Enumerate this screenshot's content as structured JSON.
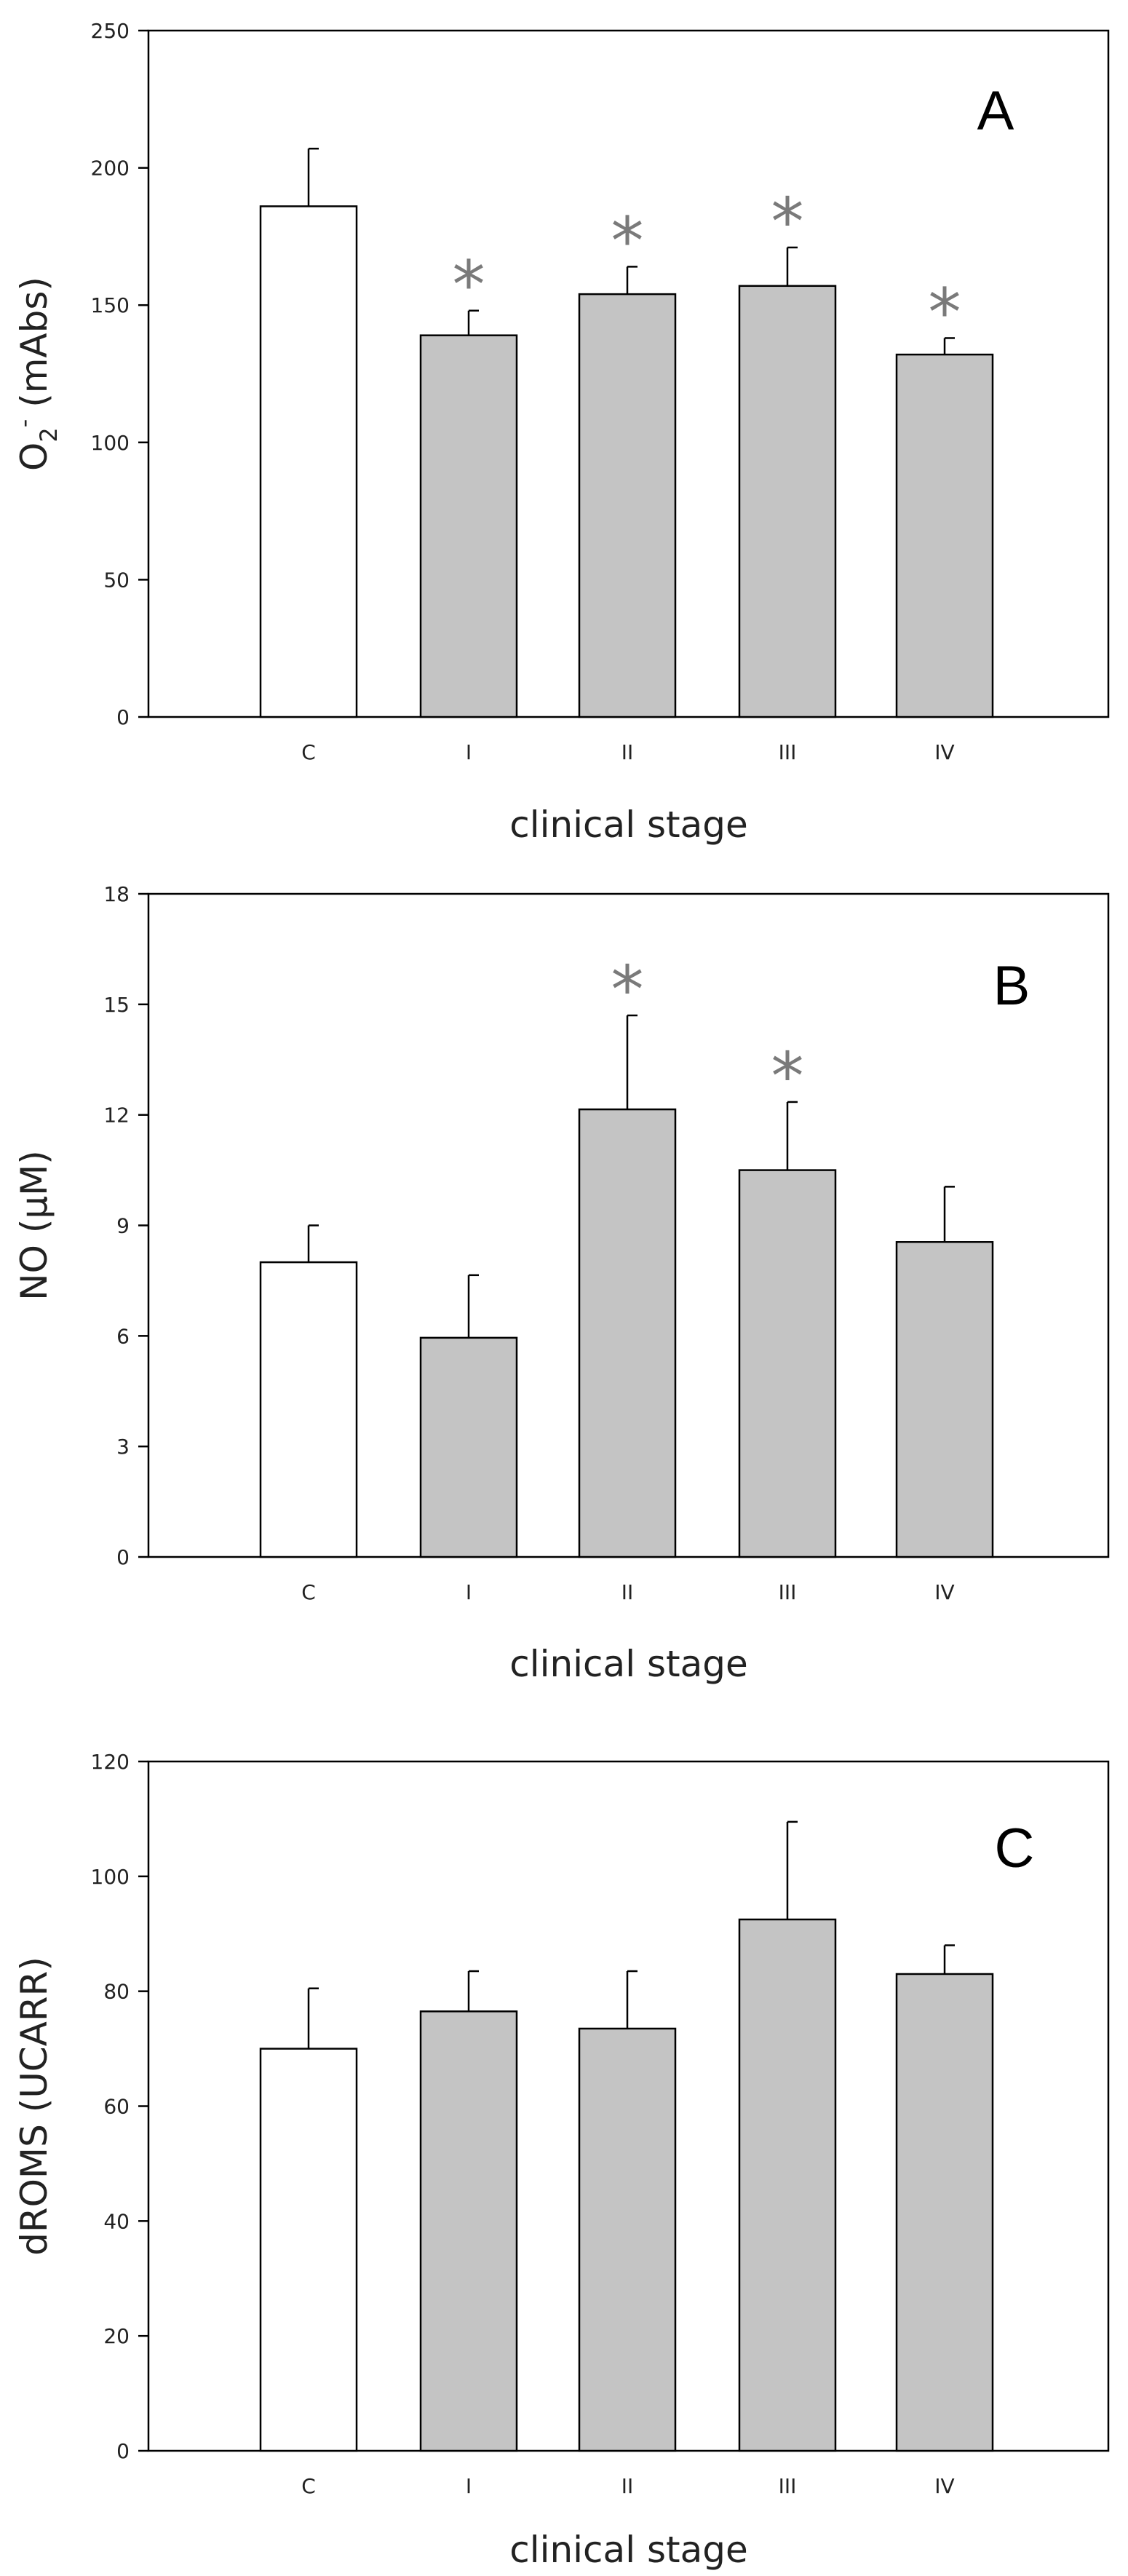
{
  "figure": {
    "x_axis_title": "clinical stage"
  },
  "colors": {
    "control_fill": "#ffffff",
    "patient_fill": "#c4c4c4",
    "stroke": "#000000",
    "asterisk": "#7a7a7a"
  },
  "chart_data": [
    {
      "type": "bar",
      "panel_label": "A",
      "categories": [
        "C",
        "I",
        "II",
        "III",
        "IV"
      ],
      "values": [
        186,
        139,
        154,
        157,
        132
      ],
      "errors": [
        21,
        9,
        10,
        14,
        6
      ],
      "significant": [
        false,
        true,
        true,
        true,
        true
      ],
      "marker": "*",
      "ylabel": {
        "main": "O",
        "sub": "2",
        "sup": "-",
        "rest": " (mAbs)"
      },
      "xlabel": "clinical stage",
      "ylim": [
        0,
        250
      ],
      "yticks": [
        0,
        50,
        100,
        150,
        200,
        250
      ],
      "legend": "none"
    },
    {
      "type": "bar",
      "panel_label": "B",
      "categories": [
        "C",
        "I",
        "II",
        "III",
        "IV"
      ],
      "values": [
        8.0,
        5.95,
        12.15,
        10.5,
        8.55
      ],
      "errors": [
        1.0,
        1.7,
        2.55,
        1.85,
        1.5
      ],
      "significant": [
        false,
        false,
        true,
        true,
        false
      ],
      "marker": "*",
      "ylabel": {
        "main": "NO (µM)",
        "sub": "",
        "sup": "",
        "rest": ""
      },
      "xlabel": "clinical stage",
      "ylim": [
        0,
        18
      ],
      "yticks": [
        0,
        3,
        6,
        9,
        12,
        15,
        18
      ],
      "legend": "none"
    },
    {
      "type": "bar",
      "panel_label": "C",
      "categories": [
        "C",
        "I",
        "II",
        "III",
        "IV"
      ],
      "values": [
        70,
        76.5,
        73.5,
        92.5,
        83
      ],
      "errors": [
        10.5,
        7,
        10,
        17,
        5
      ],
      "significant": [
        false,
        false,
        false,
        false,
        false
      ],
      "marker": "*",
      "ylabel": {
        "main": "dROMS (UCARR)",
        "sub": "",
        "sup": "",
        "rest": ""
      },
      "xlabel": "clinical stage",
      "ylim": [
        0,
        120
      ],
      "yticks": [
        0,
        20,
        40,
        60,
        80,
        100,
        120
      ],
      "legend": "none"
    }
  ]
}
